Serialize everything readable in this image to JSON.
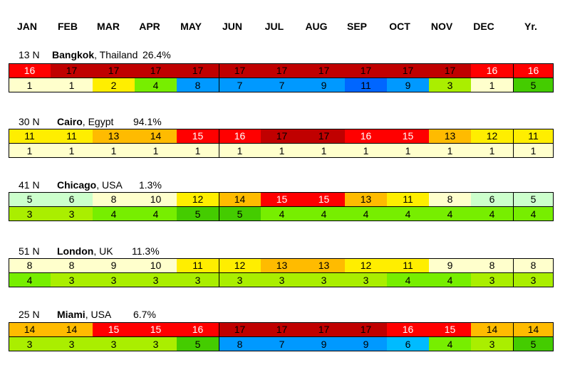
{
  "chart_data": {
    "type": "table",
    "columns": [
      "JAN",
      "FEB",
      "MAR",
      "APR",
      "MAY",
      "JUN",
      "JUL",
      "AUG",
      "SEP",
      "OCT",
      "NOV",
      "DEC",
      "Yr."
    ],
    "cities": [
      {
        "latitude": "13 N",
        "city": "Bangkok",
        "country": ", Thailand",
        "percent": "26.4%",
        "row1": [
          16,
          17,
          17,
          17,
          17,
          17,
          17,
          17,
          17,
          17,
          17,
          16,
          16
        ],
        "row2": [
          1,
          1,
          2,
          4,
          8,
          7,
          7,
          9,
          11,
          9,
          3,
          1,
          5
        ]
      },
      {
        "latitude": "30 N",
        "city": "Cairo",
        "country": ", Egypt",
        "percent": "94.1%",
        "row1": [
          11,
          11,
          13,
          14,
          15,
          16,
          17,
          17,
          16,
          15,
          13,
          12,
          11
        ],
        "row2": [
          1,
          1,
          1,
          1,
          1,
          1,
          1,
          1,
          1,
          1,
          1,
          1,
          1
        ]
      },
      {
        "latitude": "41 N",
        "city": "Chicago",
        "country": ", USA",
        "percent": "1.3%",
        "row1": [
          5,
          6,
          8,
          10,
          12,
          14,
          15,
          15,
          13,
          11,
          8,
          6,
          5
        ],
        "row2": [
          3,
          3,
          4,
          4,
          5,
          5,
          4,
          4,
          4,
          4,
          4,
          4,
          4
        ]
      },
      {
        "latitude": "51 N",
        "city": "London",
        "country": ", UK",
        "percent": "11.3%",
        "row1": [
          8,
          8,
          9,
          10,
          11,
          12,
          13,
          13,
          12,
          11,
          9,
          8,
          8
        ],
        "row2": [
          4,
          3,
          3,
          3,
          3,
          3,
          3,
          3,
          3,
          4,
          4,
          3,
          3
        ]
      },
      {
        "latitude": "25 N",
        "city": "Miami",
        "country": ", USA",
        "percent": "6.7%",
        "row1": [
          14,
          14,
          15,
          15,
          16,
          17,
          17,
          17,
          17,
          16,
          15,
          14,
          14
        ],
        "row2": [
          3,
          3,
          3,
          3,
          5,
          8,
          7,
          9,
          9,
          6,
          4,
          3,
          5
        ]
      }
    ]
  },
  "colors": {
    "row1_scale": {
      "5": "#ccffcc",
      "6": "#ccffcc",
      "8": "#ffffcc",
      "9": "#ffffcc",
      "10": "#ffffcc",
      "11": "#ffee00",
      "12": "#ffee00",
      "13": "#ffbb00",
      "14": "#ffbb00",
      "15": "#ff0000",
      "16": "#ff0000",
      "17": "#c00000"
    },
    "row2_scale": {
      "1": "#ffffcc",
      "2": "#ffee00",
      "3": "#aaee00",
      "4": "#77ee00",
      "5": "#44cc00",
      "6": "#00bbff",
      "7": "#0099ff",
      "8": "#0099ff",
      "9": "#0099ff",
      "11": "#0066ff"
    },
    "light_text_row1": [
      15,
      16
    ],
    "light_text_row2": []
  }
}
